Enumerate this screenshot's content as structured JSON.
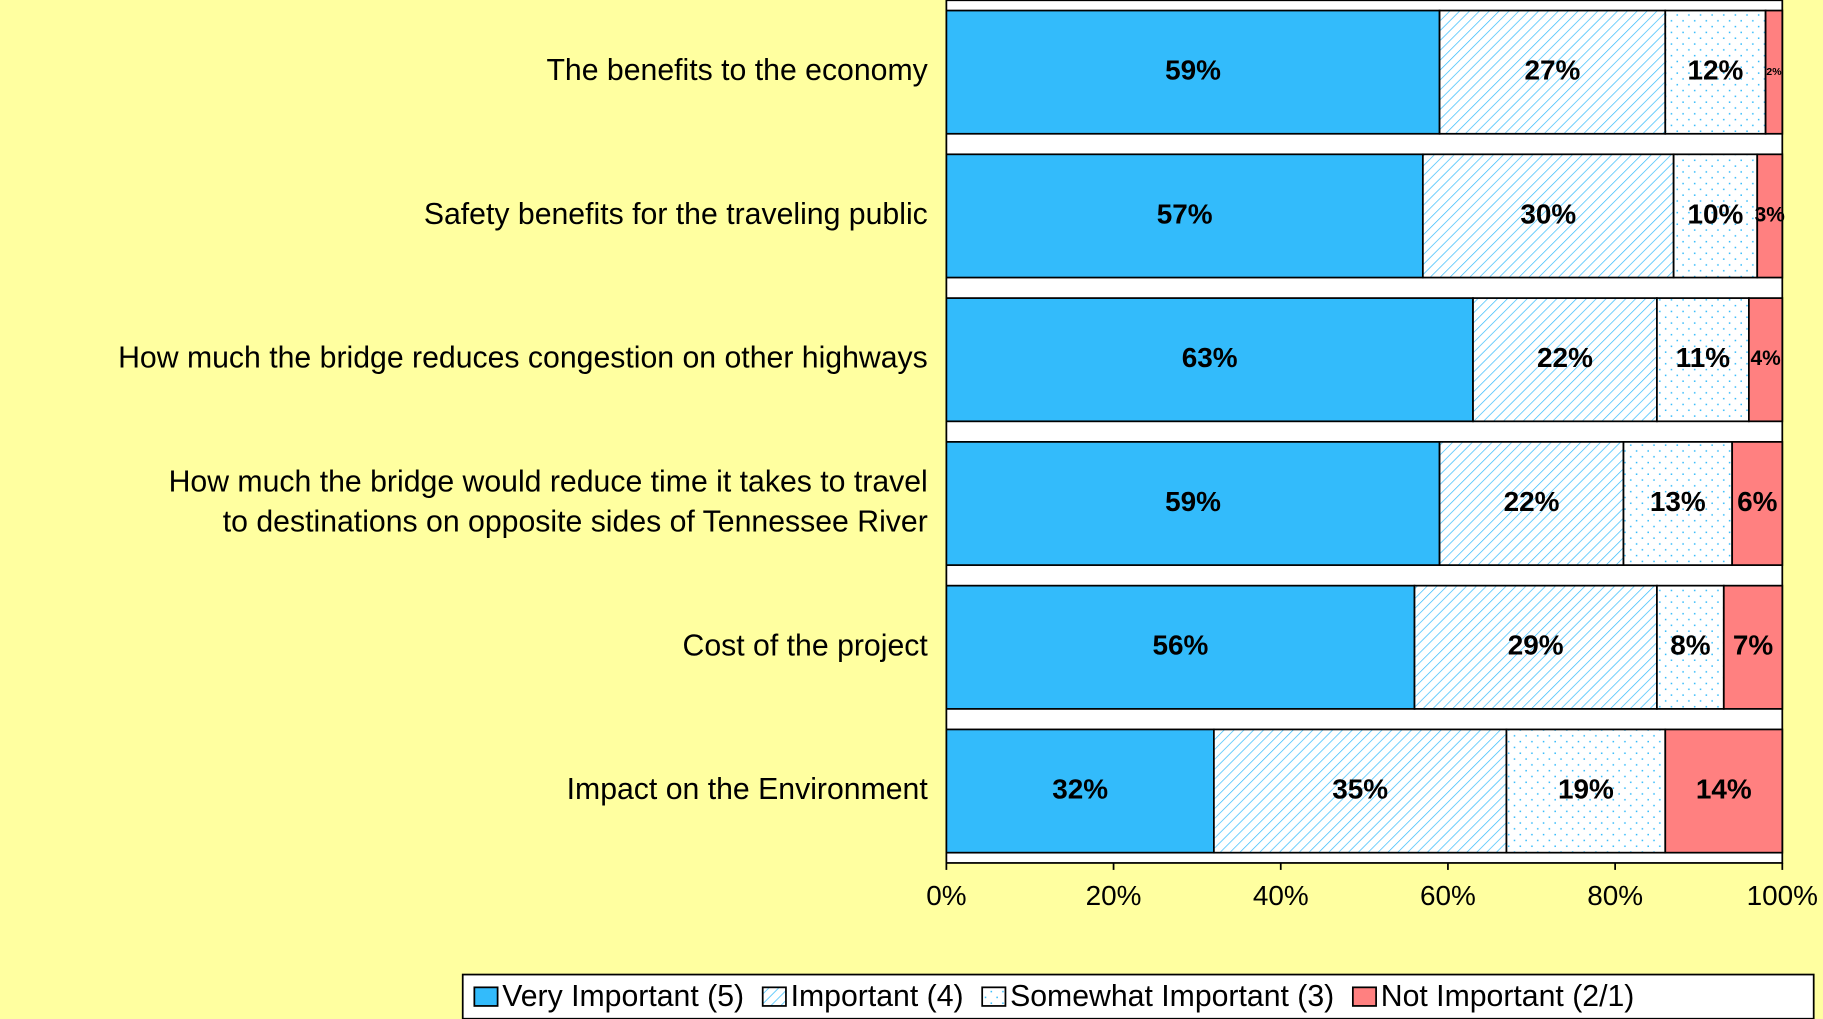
{
  "chart_data": {
    "type": "stacked-bar-horizontal",
    "categories": [
      "The benefits to the economy",
      "Safety benefits for the traveling public",
      "How much the bridge reduces congestion on other highways",
      "How much the bridge would reduce time it takes to travel\nto destinations on opposite sides of Tennessee River",
      "Cost of the project",
      "Impact on the Environment"
    ],
    "series": [
      {
        "name": "Very Important (5)",
        "color": "#33bbfb",
        "values": [
          59,
          57,
          63,
          59,
          56,
          32
        ],
        "value_labels": [
          "59%",
          "57%",
          "63%",
          "59%",
          "56%",
          "32%"
        ]
      },
      {
        "name": "Important (4)",
        "color": "#33bbfb",
        "pattern": "hatch",
        "values": [
          27,
          30,
          22,
          22,
          29,
          35
        ],
        "value_labels": [
          "27%",
          "30%",
          "22%",
          "22%",
          "29%",
          "35%"
        ]
      },
      {
        "name": "Somewhat Important (3)",
        "color": "#33bbfb",
        "pattern": "dots",
        "values": [
          12,
          10,
          11,
          13,
          8,
          19
        ],
        "value_labels": [
          "12%",
          "10%",
          "11%",
          "13%",
          "8%",
          "19%"
        ]
      },
      {
        "name": "Not Important (2/1)",
        "color": "#ff8080",
        "values": [
          2,
          3,
          4,
          6,
          7,
          14
        ],
        "value_labels": [
          "2%",
          "3%",
          "4%",
          "6%",
          "7%",
          "14%"
        ]
      }
    ],
    "xlim": [
      0,
      100
    ],
    "xticks": [
      {
        "value": 0,
        "label": "0%"
      },
      {
        "value": 20,
        "label": "20%"
      },
      {
        "value": 40,
        "label": "40%"
      },
      {
        "value": 60,
        "label": "60%"
      },
      {
        "value": 80,
        "label": "80%"
      },
      {
        "value": 100,
        "label": "100%"
      }
    ],
    "legend": "bottom"
  }
}
